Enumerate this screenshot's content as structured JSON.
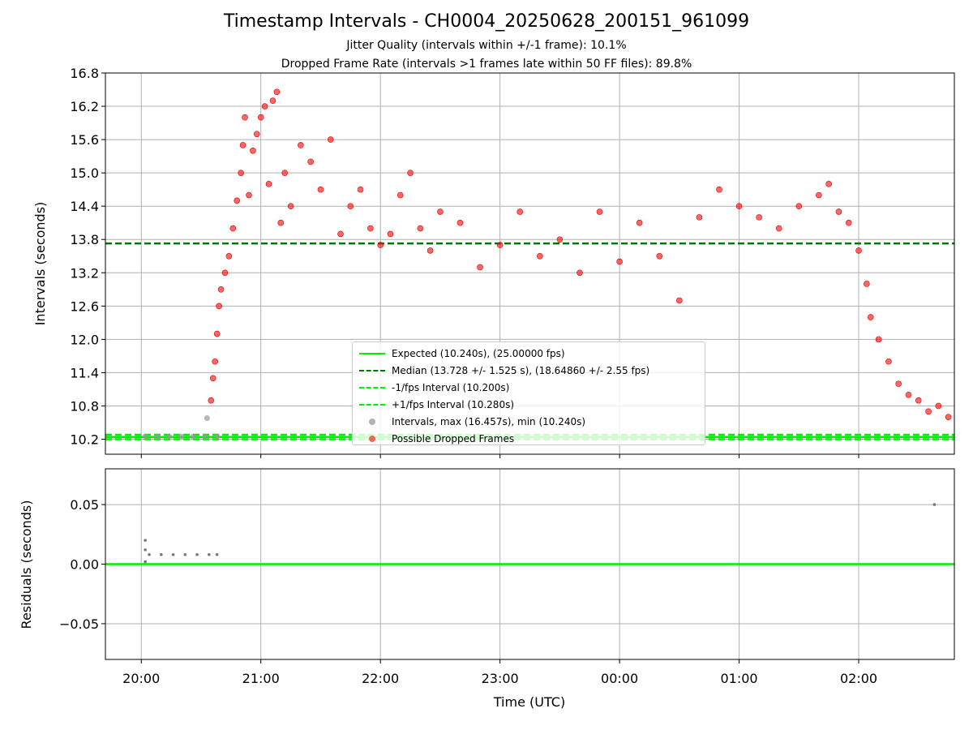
{
  "chart_data": [
    {
      "type": "scatter",
      "title": "Timestamp Intervals - CH0004_20250628_200151_961099",
      "subtitle_1": "Jitter Quality (intervals within +/-1 frame): 10.1%",
      "subtitle_2": "Dropped Frame Rate (intervals >1 frames late within 50 FF files): 89.8%",
      "ylabel": "Intervals (seconds)",
      "xlabel": "",
      "ylim": [
        9.93,
        16.8
      ],
      "xlim": [
        "19:42",
        "02:48"
      ],
      "yticks": [
        "10.2",
        "10.8",
        "11.4",
        "12.0",
        "12.6",
        "13.2",
        "13.8",
        "14.4",
        "15.0",
        "15.6",
        "16.2",
        "16.8"
      ],
      "grid": true,
      "legend_position": "lower center",
      "colors": {
        "expected": "#00ee00",
        "median": "#007700",
        "interval_limits": "#00ee00",
        "intervals": "#999999",
        "dropped": "#ff0000"
      },
      "reference_lines": {
        "expected": 10.24,
        "median": 13.728,
        "minus_one_fps": 10.2,
        "plus_one_fps": 10.28
      },
      "legend": [
        {
          "label": "Expected (10.240s), (25.00000 fps)",
          "style": "solid-line",
          "color": "#00ee00"
        },
        {
          "label": "Median (13.728 +/- 1.525 s), (18.64860 +/- 2.55 fps)",
          "style": "dashed-line",
          "color": "#007700"
        },
        {
          "label": "-1/fps Interval (10.200s)",
          "style": "dashed-line",
          "color": "#00ee00"
        },
        {
          "label": "+1/fps Interval (10.280s)",
          "style": "dashed-line",
          "color": "#00ee00"
        },
        {
          "label": "Intervals, max (16.457s), min (10.240s)",
          "style": "dot",
          "color": "#999999"
        },
        {
          "label": "Possible Dropped Frames",
          "style": "dot",
          "color": "#ff3322"
        }
      ],
      "series": [
        {
          "name": "Intervals, max (16.457s), min (10.240s)",
          "points": [
            [
              "20:02",
              10.25
            ],
            [
              "20:08",
              10.25
            ],
            [
              "20:14",
              10.25
            ],
            [
              "20:20",
              10.25
            ],
            [
              "20:26",
              10.25
            ],
            [
              "20:32",
              10.25
            ],
            [
              "20:38",
              10.25
            ],
            [
              "20:33",
              10.58
            ]
          ]
        },
        {
          "name": "Possible Dropped Frames",
          "points": [
            [
              "20:35",
              10.9
            ],
            [
              "20:36",
              11.3
            ],
            [
              "20:37",
              11.6
            ],
            [
              "20:38",
              12.1
            ],
            [
              "20:39",
              12.6
            ],
            [
              "20:40",
              12.9
            ],
            [
              "20:42",
              13.2
            ],
            [
              "20:44",
              13.5
            ],
            [
              "20:46",
              14.0
            ],
            [
              "20:48",
              14.5
            ],
            [
              "20:50",
              15.0
            ],
            [
              "20:51",
              15.5
            ],
            [
              "20:52",
              16.0
            ],
            [
              "20:54",
              14.6
            ],
            [
              "20:56",
              15.4
            ],
            [
              "20:58",
              15.7
            ],
            [
              "21:00",
              16.0
            ],
            [
              "21:02",
              16.2
            ],
            [
              "21:04",
              14.8
            ],
            [
              "21:06",
              16.3
            ],
            [
              "21:08",
              16.46
            ],
            [
              "21:10",
              14.1
            ],
            [
              "21:12",
              15.0
            ],
            [
              "21:15",
              14.4
            ],
            [
              "21:20",
              15.5
            ],
            [
              "21:25",
              15.2
            ],
            [
              "21:30",
              14.7
            ],
            [
              "21:35",
              15.6
            ],
            [
              "21:40",
              13.9
            ],
            [
              "21:45",
              14.4
            ],
            [
              "21:50",
              14.7
            ],
            [
              "21:55",
              14.0
            ],
            [
              "22:00",
              13.7
            ],
            [
              "22:05",
              13.9
            ],
            [
              "22:10",
              14.6
            ],
            [
              "22:15",
              15.0
            ],
            [
              "22:20",
              14.0
            ],
            [
              "22:25",
              13.6
            ],
            [
              "22:30",
              14.3
            ],
            [
              "22:40",
              14.1
            ],
            [
              "22:50",
              13.3
            ],
            [
              "23:00",
              13.7
            ],
            [
              "23:10",
              14.3
            ],
            [
              "23:20",
              13.5
            ],
            [
              "23:30",
              13.8
            ],
            [
              "23:40",
              13.2
            ],
            [
              "23:50",
              14.3
            ],
            [
              "00:00",
              13.4
            ],
            [
              "00:10",
              14.1
            ],
            [
              "00:20",
              13.5
            ],
            [
              "00:30",
              12.7
            ],
            [
              "00:40",
              14.2
            ],
            [
              "00:50",
              14.7
            ],
            [
              "01:00",
              14.4
            ],
            [
              "01:10",
              14.2
            ],
            [
              "01:20",
              14.0
            ],
            [
              "01:30",
              14.4
            ],
            [
              "01:40",
              14.6
            ],
            [
              "01:45",
              14.8
            ],
            [
              "01:50",
              14.3
            ],
            [
              "01:55",
              14.1
            ],
            [
              "02:00",
              13.6
            ],
            [
              "02:04",
              13.0
            ],
            [
              "02:06",
              12.4
            ],
            [
              "02:10",
              12.0
            ],
            [
              "02:15",
              11.6
            ],
            [
              "02:20",
              11.2
            ],
            [
              "02:25",
              11.0
            ],
            [
              "02:30",
              10.9
            ],
            [
              "02:35",
              10.7
            ],
            [
              "02:40",
              10.8
            ],
            [
              "02:45",
              10.6
            ]
          ]
        }
      ]
    },
    {
      "type": "scatter",
      "xlabel": "Time (UTC)",
      "ylabel": "Residuals (seconds)",
      "ylim": [
        -0.08,
        0.08
      ],
      "xlim": [
        "19:42",
        "02:48"
      ],
      "yticks": [
        "0.05",
        "0.00",
        "−0.05"
      ],
      "xticks": [
        "20:00",
        "21:00",
        "22:00",
        "23:00",
        "00:00",
        "01:00",
        "02:00"
      ],
      "grid": true,
      "zero_line_color": "#00ee00",
      "series": [
        {
          "points": [
            [
              "20:02",
              0.002
            ],
            [
              "20:02",
              0.02
            ],
            [
              "20:02",
              0.012
            ],
            [
              "20:04",
              0.008
            ],
            [
              "20:10",
              0.008
            ],
            [
              "20:16",
              0.008
            ],
            [
              "20:22",
              0.008
            ],
            [
              "20:28",
              0.008
            ],
            [
              "20:34",
              0.008
            ],
            [
              "20:38",
              0.008
            ],
            [
              "02:38",
              0.05
            ]
          ]
        }
      ]
    }
  ]
}
